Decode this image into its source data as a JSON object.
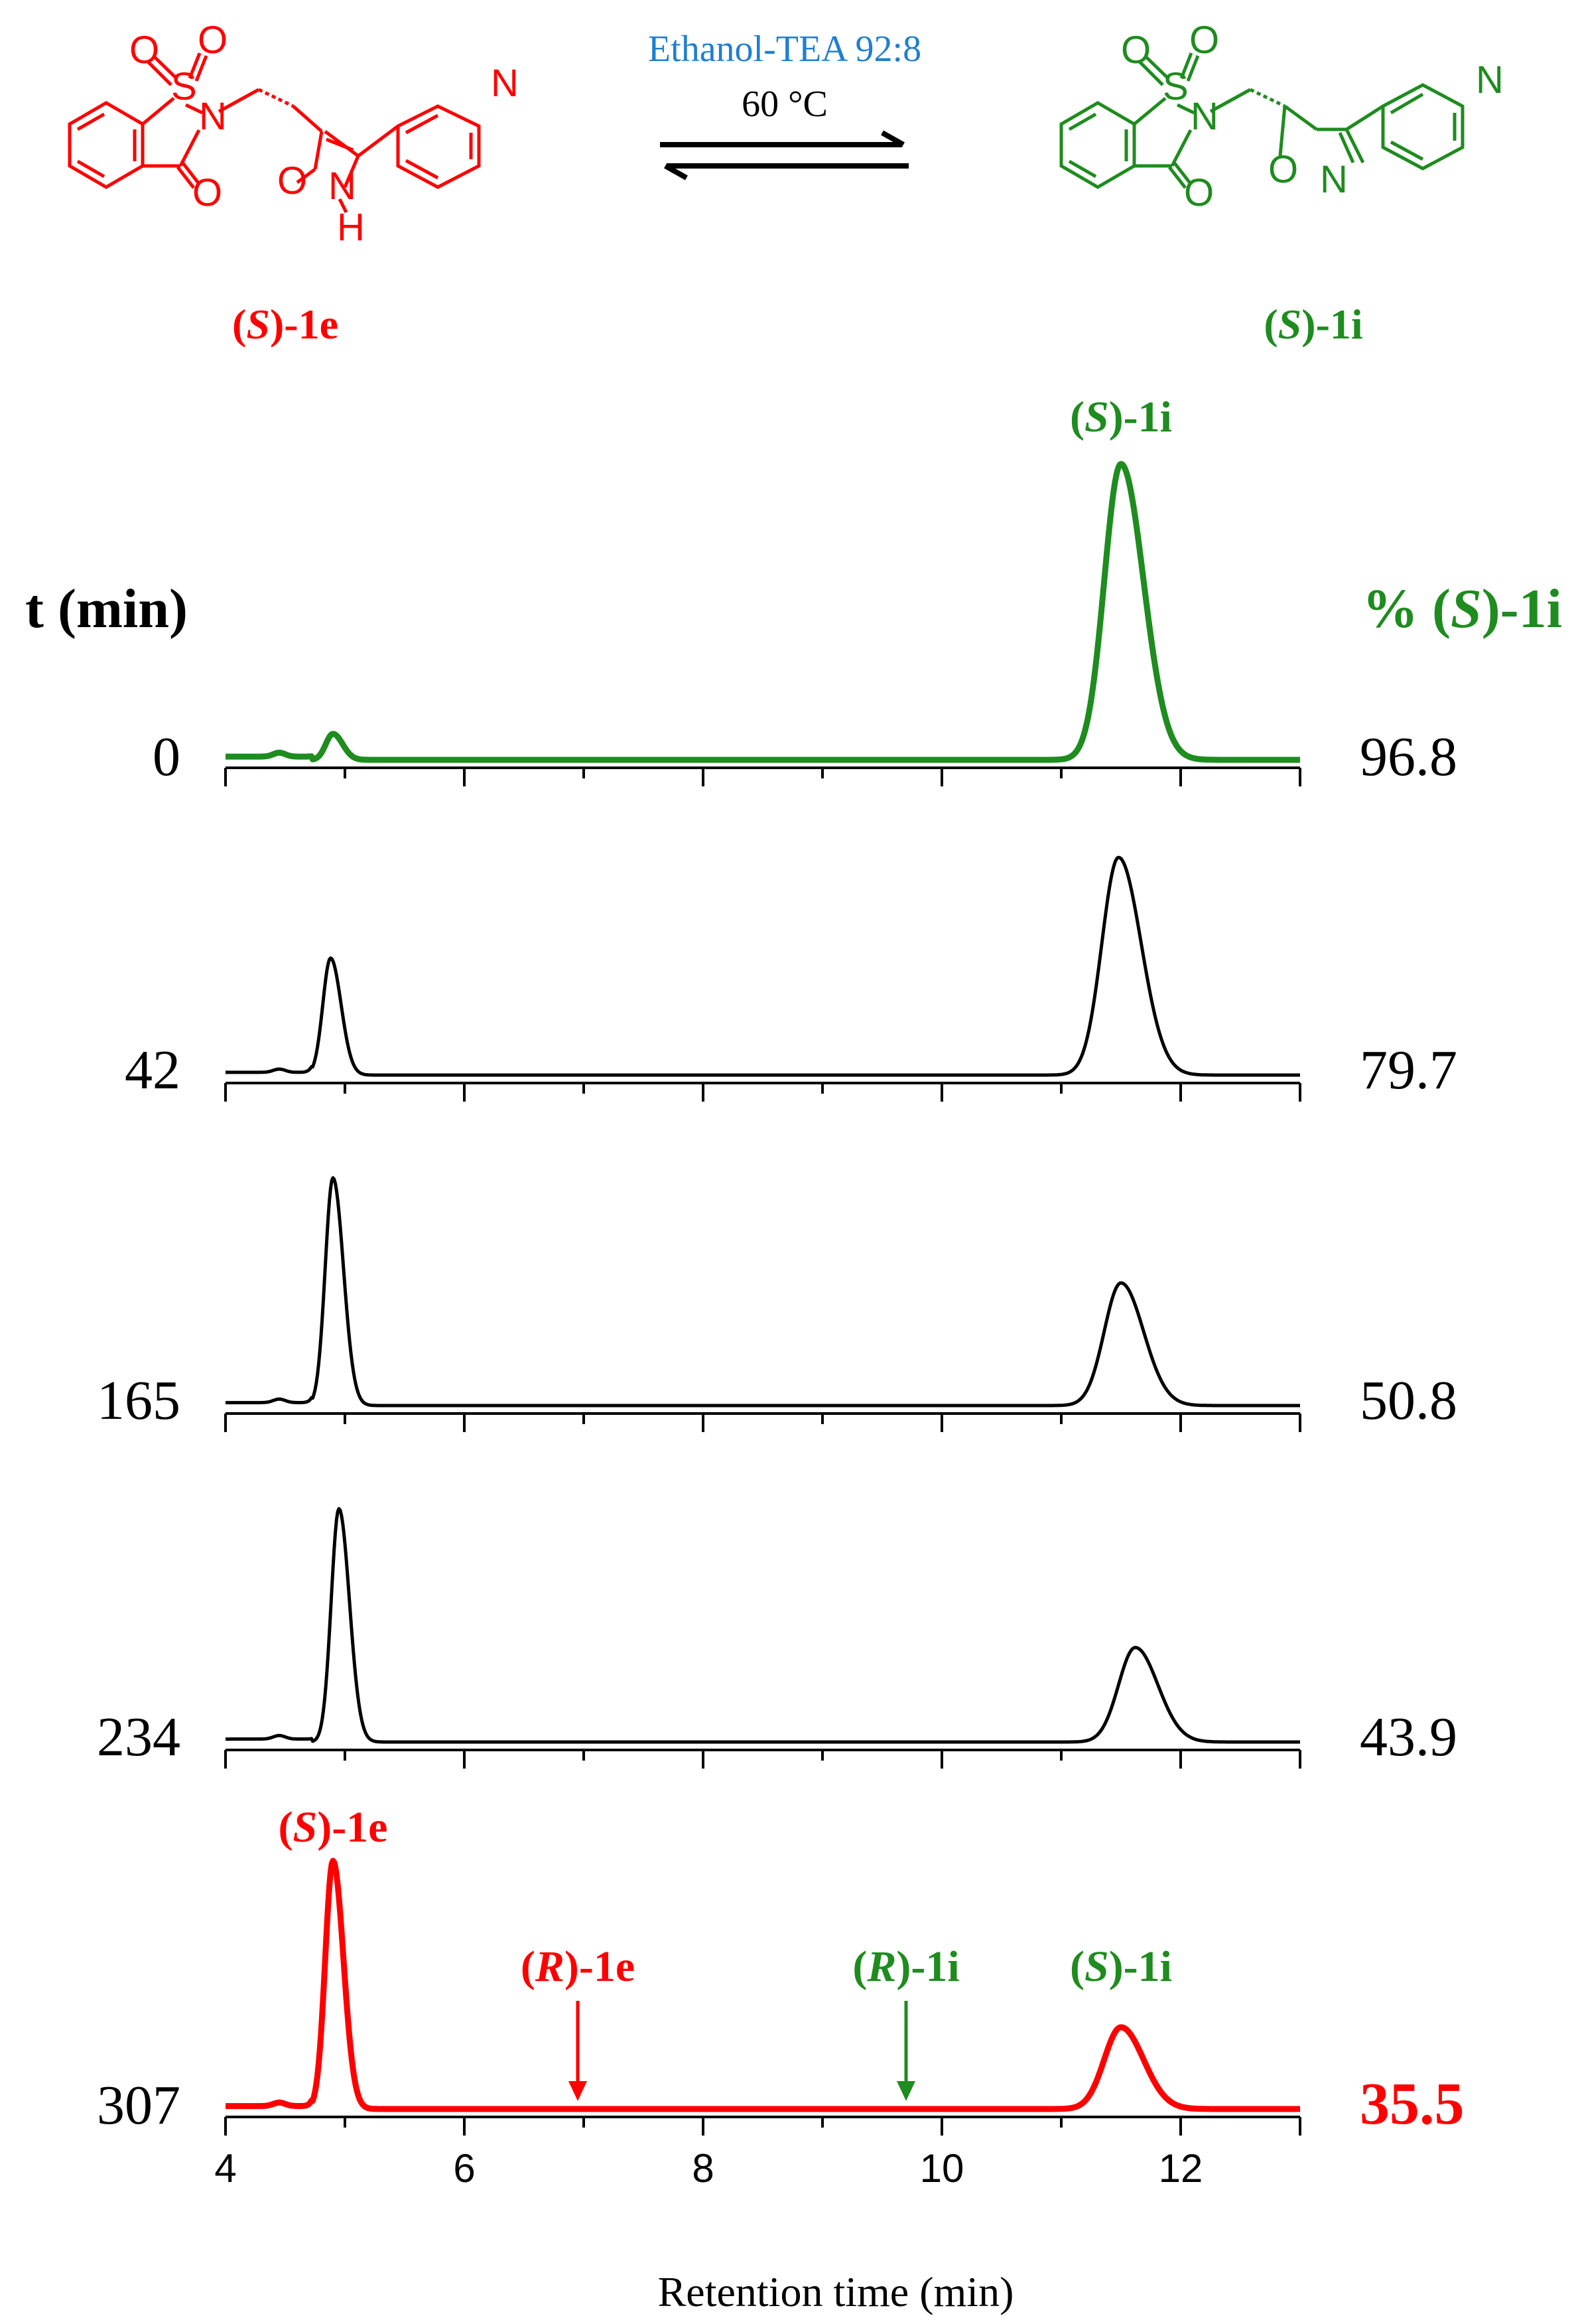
{
  "scheme": {
    "reactant_label": {
      "prefix": "(",
      "italic": "S",
      "suffix": ")-1e"
    },
    "product_label": {
      "prefix": "(",
      "italic": "S",
      "suffix": ")-1i"
    },
    "conditions_solvent": "Ethanol-TEA 92:8",
    "conditions_temp": "60 °C",
    "atoms": {
      "S": "S",
      "O": "O",
      "N": "N",
      "H": "H"
    }
  },
  "left_header": "t (min)",
  "right_header": {
    "prefix": "% (",
    "italic": "S",
    "suffix": ")-1i"
  },
  "colors": {
    "red": "#ff0000",
    "green": "#1e8c1e",
    "black": "#000000",
    "blue": "#1f7fcf"
  },
  "chart_data": {
    "type": "line",
    "xlabel": "Retention time (min)",
    "xlim": [
      4,
      13
    ],
    "x_ticks": [
      4,
      6,
      8,
      10,
      12
    ],
    "traces": [
      {
        "time": "0",
        "percent": "96.8",
        "color": "green",
        "peak1": {
          "rt": 4.9,
          "height": 0.08,
          "width": 0.06
        },
        "peak2": {
          "rt": 11.5,
          "height": 0.91,
          "width": 0.14
        }
      },
      {
        "time": "42",
        "percent": "79.7",
        "color": "black",
        "peak1": {
          "rt": 4.88,
          "height": 0.43,
          "width": 0.065
        },
        "peak2": {
          "rt": 11.48,
          "height": 0.8,
          "width": 0.14
        }
      },
      {
        "time": "165",
        "percent": "50.8",
        "color": "black",
        "peak1": {
          "rt": 4.9,
          "height": 0.78,
          "width": 0.065
        },
        "peak2": {
          "rt": 11.5,
          "height": 0.42,
          "width": 0.14
        }
      },
      {
        "time": "234",
        "percent": "43.9",
        "color": "black",
        "peak1": {
          "rt": 4.95,
          "height": 0.79,
          "width": 0.065
        },
        "peak2": {
          "rt": 11.62,
          "height": 0.32,
          "width": 0.14
        }
      },
      {
        "time": "307",
        "percent": "35.5",
        "color": "red",
        "peak1": {
          "rt": 4.9,
          "height": 0.85,
          "width": 0.065
        },
        "peak2": {
          "rt": 11.5,
          "height": 0.28,
          "width": 0.14
        }
      }
    ],
    "peak_labels": [
      {
        "prefix": "(",
        "italic": "S",
        "suffix": ")-1i",
        "color": "green",
        "trace": 0,
        "rt": 11.5
      },
      {
        "prefix": "(",
        "italic": "S",
        "suffix": ")-1e",
        "color": "red",
        "trace": 4,
        "rt": 4.9
      },
      {
        "prefix": "(",
        "italic": "R",
        "suffix": ")-1e",
        "color": "red",
        "trace": 4,
        "rt": 6.95,
        "arrow": true
      },
      {
        "prefix": "(",
        "italic": "R",
        "suffix": ")-1i",
        "color": "green",
        "trace": 4,
        "rt": 9.7,
        "arrow": true
      },
      {
        "prefix": "(",
        "italic": "S",
        "suffix": ")-1i",
        "color": "green",
        "trace": 4,
        "rt": 11.5
      }
    ]
  }
}
